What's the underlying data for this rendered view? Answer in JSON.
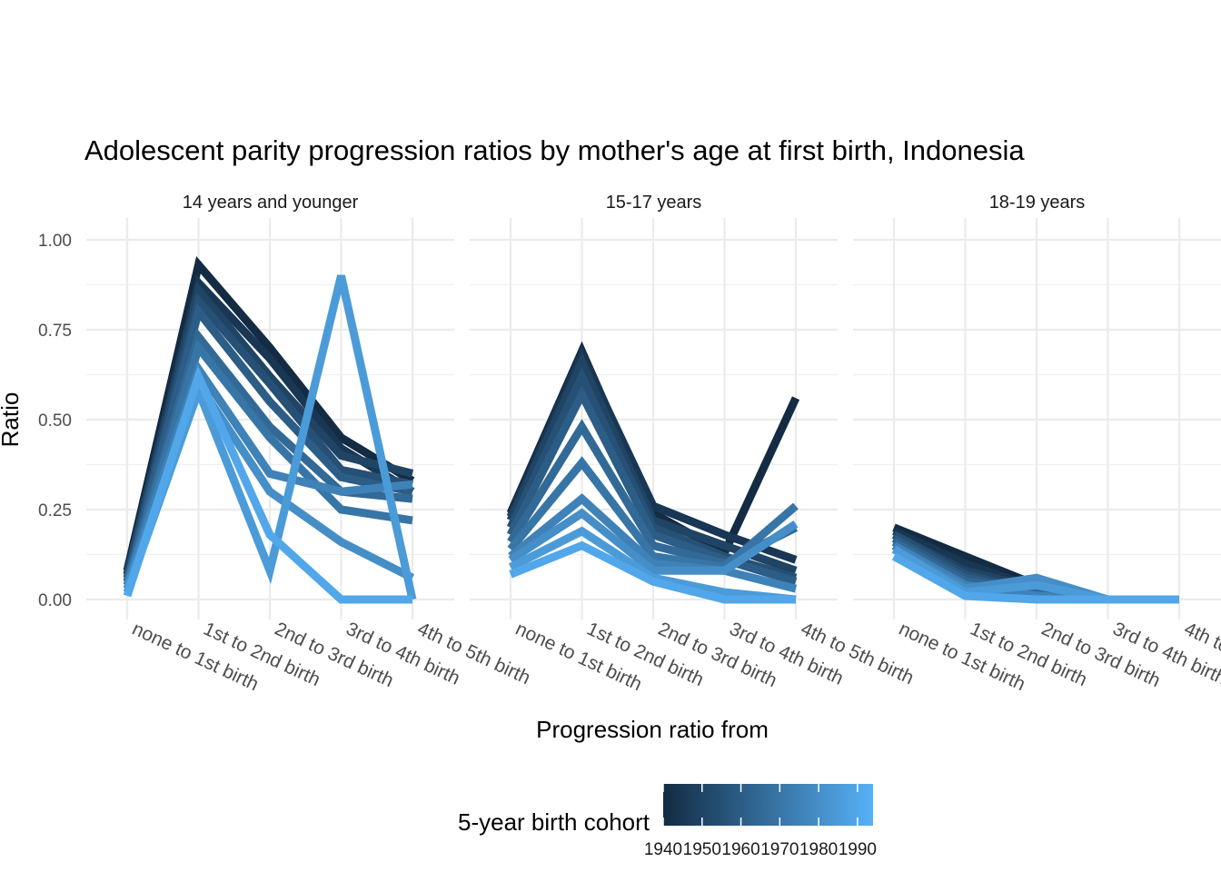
{
  "chart_data": {
    "type": "line",
    "title": "Adolescent parity progression ratios by mother's age at first birth,  Indonesia",
    "xlabel": "Progression ratio from",
    "ylabel": "Ratio",
    "ylim": [
      0,
      1
    ],
    "y_ticks": [
      "0.00",
      "0.25",
      "0.50",
      "0.75",
      "1.00"
    ],
    "y_tick_values": [
      0,
      0.25,
      0.5,
      0.75,
      1.0
    ],
    "categories": [
      "none to 1st birth",
      "1st to 2nd birth",
      "2nd to 3rd birth",
      "3rd to 4th birth",
      "4th to 5th birth"
    ],
    "grid": true,
    "legend": {
      "title": "5-year birth cohort",
      "placement": "bottom",
      "type": "colorbar",
      "range": [
        1940,
        1994
      ],
      "labels": [
        "1940",
        "1950",
        "1960",
        "1970",
        "1980",
        "1990"
      ],
      "label_values": [
        1940,
        1950,
        1960,
        1970,
        1980,
        1990
      ],
      "color_low": "#132b43",
      "color_high": "#56b1f7"
    },
    "facets": [
      {
        "label": "14 years and younger",
        "series": [
          {
            "cohort": 1940,
            "values": [
              0.08,
              0.93,
              0.7,
              0.45,
              0.33
            ]
          },
          {
            "cohort": 1945,
            "values": [
              0.07,
              0.88,
              0.67,
              0.42,
              0.3
            ]
          },
          {
            "cohort": 1950,
            "values": [
              0.07,
              0.86,
              0.62,
              0.4,
              0.35
            ]
          },
          {
            "cohort": 1955,
            "values": [
              0.06,
              0.83,
              0.6,
              0.36,
              0.32
            ]
          },
          {
            "cohort": 1960,
            "values": [
              0.05,
              0.8,
              0.55,
              0.34,
              0.3
            ]
          },
          {
            "cohort": 1965,
            "values": [
              0.05,
              0.73,
              0.48,
              0.3,
              0.28
            ]
          },
          {
            "cohort": 1970,
            "values": [
              0.04,
              0.7,
              0.45,
              0.25,
              0.22
            ]
          },
          {
            "cohort": 1975,
            "values": [
              0.04,
              0.64,
              0.35,
              0.3,
              0.32
            ]
          },
          {
            "cohort": 1980,
            "values": [
              0.03,
              0.6,
              0.3,
              0.16,
              0.06
            ]
          },
          {
            "cohort": 1985,
            "values": [
              0.02,
              0.58,
              0.08,
              0.9,
              0.0
            ]
          },
          {
            "cohort": 1990,
            "values": [
              0.01,
              0.62,
              0.18,
              0.0,
              0.0
            ]
          }
        ]
      },
      {
        "label": "15-17 years",
        "series": [
          {
            "cohort": 1940,
            "values": [
              0.24,
              0.69,
              0.24,
              0.13,
              0.56
            ]
          },
          {
            "cohort": 1945,
            "values": [
              0.23,
              0.68,
              0.26,
              0.18,
              0.11
            ]
          },
          {
            "cohort": 1950,
            "values": [
              0.22,
              0.66,
              0.22,
              0.15,
              0.08
            ]
          },
          {
            "cohort": 1955,
            "values": [
              0.2,
              0.62,
              0.2,
              0.12,
              0.06
            ]
          },
          {
            "cohort": 1960,
            "values": [
              0.18,
              0.57,
              0.18,
              0.11,
              0.05
            ]
          },
          {
            "cohort": 1965,
            "values": [
              0.16,
              0.48,
              0.15,
              0.1,
              0.2
            ]
          },
          {
            "cohort": 1970,
            "values": [
              0.14,
              0.38,
              0.12,
              0.09,
              0.26
            ]
          },
          {
            "cohort": 1975,
            "values": [
              0.12,
              0.28,
              0.1,
              0.08,
              0.03
            ]
          },
          {
            "cohort": 1980,
            "values": [
              0.11,
              0.24,
              0.08,
              0.08,
              0.21
            ]
          },
          {
            "cohort": 1985,
            "values": [
              0.09,
              0.19,
              0.06,
              0.02,
              0.0
            ]
          },
          {
            "cohort": 1990,
            "values": [
              0.07,
              0.15,
              0.05,
              0.0,
              0.0
            ]
          }
        ]
      },
      {
        "label": "18-19 years",
        "series": [
          {
            "cohort": 1940,
            "values": [
              0.2,
              0.12,
              0.04,
              0.0,
              0.0
            ]
          },
          {
            "cohort": 1945,
            "values": [
              0.19,
              0.1,
              0.03,
              0.0,
              0.0
            ]
          },
          {
            "cohort": 1950,
            "values": [
              0.18,
              0.08,
              0.03,
              0.0,
              0.0
            ]
          },
          {
            "cohort": 1955,
            "values": [
              0.18,
              0.07,
              0.02,
              0.0,
              0.0
            ]
          },
          {
            "cohort": 1960,
            "values": [
              0.17,
              0.06,
              0.02,
              0.0,
              0.0
            ]
          },
          {
            "cohort": 1965,
            "values": [
              0.16,
              0.05,
              0.02,
              0.0,
              0.0
            ]
          },
          {
            "cohort": 1970,
            "values": [
              0.15,
              0.04,
              0.01,
              0.0,
              0.0
            ]
          },
          {
            "cohort": 1975,
            "values": [
              0.15,
              0.04,
              0.01,
              0.0,
              0.0
            ]
          },
          {
            "cohort": 1980,
            "values": [
              0.14,
              0.03,
              0.06,
              0.0,
              0.0
            ]
          },
          {
            "cohort": 1985,
            "values": [
              0.14,
              0.02,
              0.04,
              0.0,
              0.0
            ]
          },
          {
            "cohort": 1990,
            "values": [
              0.12,
              0.01,
              0.0,
              0.0,
              0.0
            ]
          }
        ]
      }
    ]
  }
}
